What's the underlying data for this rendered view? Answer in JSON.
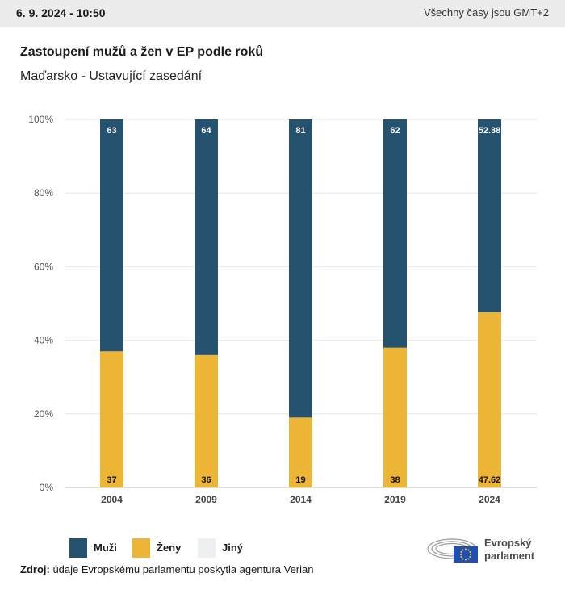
{
  "header": {
    "date": "6. 9. 2024 - 10:50",
    "timezone_note": "Všechny časy jsou GMT+2"
  },
  "title": "Zastoupení mužů a žen v EP podle roků",
  "subtitle": "Maďarsko - Ustavující zasedání",
  "colors": {
    "muzi": "#25526f",
    "zeny": "#ecb535",
    "jiny": "#eeeff1",
    "grid": "#e6e6e6"
  },
  "chart_data": {
    "type": "bar",
    "stacked": true,
    "categories": [
      "2004",
      "2009",
      "2014",
      "2019",
      "2024"
    ],
    "series": [
      {
        "name": "Muži",
        "values": [
          63,
          64,
          81,
          62,
          52.38
        ],
        "labels": [
          "63",
          "64",
          "81",
          "62",
          "52.38"
        ]
      },
      {
        "name": "Ženy",
        "values": [
          37,
          36,
          19,
          38,
          47.62
        ],
        "labels": [
          "37",
          "36",
          "19",
          "38",
          "47.62"
        ]
      },
      {
        "name": "Jiný",
        "values": [
          0,
          0,
          0,
          0,
          0
        ]
      }
    ],
    "y_ticks": [
      "0%",
      "20%",
      "40%",
      "60%",
      "80%",
      "100%"
    ],
    "ylim": [
      0,
      100
    ],
    "grid": true,
    "legend_position": "bottom-left"
  },
  "legend": [
    {
      "label": "Muži"
    },
    {
      "label": "Ženy"
    },
    {
      "label": "Jiný"
    }
  ],
  "source": {
    "label": "Zdroj:",
    "text": "údaje Evropskému parlamentu poskytla agentura Verian"
  },
  "logo": {
    "line1": "Evropský",
    "line2": "parlament"
  }
}
